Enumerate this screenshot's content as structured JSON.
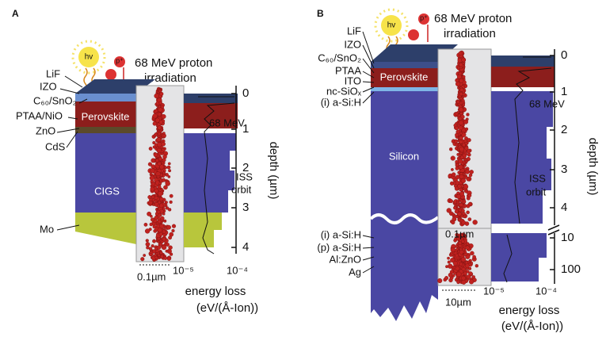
{
  "panel_a": {
    "label": "A",
    "hv": "hv",
    "proton": "p⁺",
    "beam": [
      "68 MeV proton",
      "irradiation"
    ],
    "layers": [
      "LiF",
      "IZO",
      "C₆₀/SnO₂",
      "PTAA/NiO",
      "ZnO",
      "CdS",
      "Mo"
    ],
    "regions": [
      "Perovskite",
      "CIGS"
    ],
    "curves": [
      "68 MeV",
      "ISS",
      "orbit"
    ],
    "depth_ticks": [
      "0",
      "1",
      "2",
      "3",
      "4"
    ],
    "depth_label": "depth (µm)",
    "scale": [
      "0.1µm"
    ],
    "x_ticks": [
      "10⁻⁵",
      "10⁻⁴"
    ],
    "x_label": [
      "energy loss",
      "(eV/(Å-Ion))"
    ]
  },
  "panel_b": {
    "label": "B",
    "hv": "hv",
    "proton": "p⁺",
    "beam": [
      "68 MeV proton",
      "irradiation"
    ],
    "layers": [
      "LiF",
      "IZO",
      "C₆₀/SnO₂",
      "PTAA",
      "ITO",
      "nc-SiOₓ",
      "(i) a-Si:H",
      "(i) a-Si:H",
      "(p) a-Si:H",
      "Al:ZnO",
      "Ag"
    ],
    "regions": [
      "Perovskite",
      "Silicon"
    ],
    "curves": [
      "68 MeV",
      "ISS",
      "orbit"
    ],
    "depth_ticks": [
      "0",
      "1",
      "2",
      "3",
      "4",
      "10",
      "100"
    ],
    "depth_label": "depth (µm)",
    "scale": [
      "0.1µm",
      "10µm"
    ],
    "x_ticks": [
      "10⁻⁵",
      "10⁻⁴"
    ],
    "x_label": [
      "energy loss",
      "(eV/(Å-Ion))"
    ]
  }
}
